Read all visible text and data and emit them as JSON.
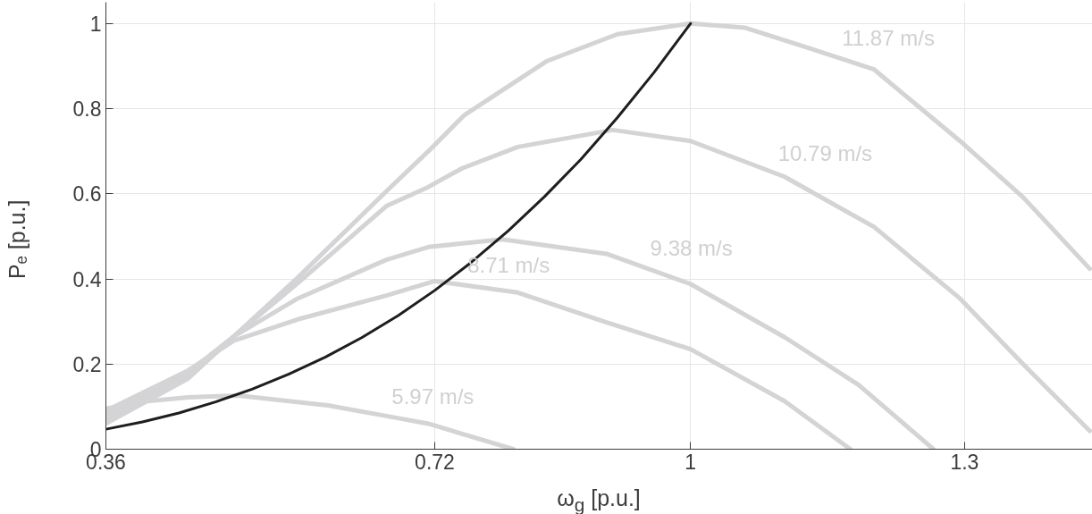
{
  "chart_data": {
    "type": "line",
    "xlabel": "ω$_{g}$ [p.u.]",
    "ylabel": "Pₑ [p.u.]",
    "xlim": [
      0.36,
      1.44
    ],
    "ylim": [
      0,
      1.05
    ],
    "xticks": [
      0.36,
      0.72,
      1,
      1.3
    ],
    "yticks": [
      0,
      0.2,
      0.4,
      0.6,
      0.8,
      1
    ],
    "grid": true,
    "series": [
      {
        "color": "#d4d4d6",
        "x": [
          0.36,
          0.45,
          0.5,
          0.57,
          0.667,
          0.713,
          0.752,
          0.843,
          0.92,
          1.0,
          1.06,
          1.123,
          1.201,
          1.295,
          1.364,
          1.437
        ],
        "values": [
          0.06,
          0.166,
          0.265,
          0.403,
          0.606,
          0.7,
          0.784,
          0.912,
          0.975,
          1.0,
          0.99,
          0.947,
          0.892,
          0.724,
          0.592,
          0.424
        ]
      },
      {
        "color": "#d4d4d6",
        "x": [
          0.36,
          0.45,
          0.5,
          0.57,
          0.667,
          0.713,
          0.75,
          0.811,
          0.915,
          1.0,
          1.103,
          1.201,
          1.295,
          1.364,
          1.437
        ],
        "values": [
          0.07,
          0.17,
          0.265,
          0.39,
          0.571,
          0.616,
          0.66,
          0.71,
          0.75,
          0.724,
          0.64,
          0.522,
          0.354,
          0.2,
          0.043
        ]
      },
      {
        "color": "#d4d4d6",
        "x": [
          0.36,
          0.45,
          0.5,
          0.57,
          0.667,
          0.713,
          0.794,
          0.908,
          1.0,
          1.103,
          1.184,
          1.266
        ],
        "values": [
          0.08,
          0.18,
          0.265,
          0.354,
          0.445,
          0.475,
          0.493,
          0.459,
          0.388,
          0.263,
          0.151,
          0.0
        ]
      },
      {
        "color": "#d4d4d6",
        "x": [
          0.36,
          0.45,
          0.5,
          0.57,
          0.667,
          0.72,
          0.811,
          0.908,
          1.0,
          1.103,
          1.175
        ],
        "values": [
          0.09,
          0.185,
          0.255,
          0.305,
          0.361,
          0.395,
          0.368,
          0.298,
          0.235,
          0.113,
          0.0
        ]
      },
      {
        "color": "#d4d4d6",
        "x": [
          0.36,
          0.4,
          0.45,
          0.505,
          0.603,
          0.667,
          0.713,
          0.806
        ],
        "values": [
          0.095,
          0.112,
          0.122,
          0.126,
          0.103,
          0.078,
          0.06,
          0.0
        ]
      },
      {
        "color": "#1e1e1e",
        "x": [
          0.36,
          0.4,
          0.44,
          0.48,
          0.52,
          0.56,
          0.6,
          0.64,
          0.68,
          0.72,
          0.76,
          0.8,
          0.84,
          0.88,
          0.92,
          0.96,
          1.0
        ],
        "values": [
          0.047,
          0.064,
          0.085,
          0.111,
          0.141,
          0.176,
          0.216,
          0.262,
          0.314,
          0.373,
          0.439,
          0.512,
          0.593,
          0.681,
          0.779,
          0.885,
          1.0
        ]
      }
    ],
    "annotations": [
      {
        "text": "11.87 m/s",
        "x": 1.16,
        "y": 0.921
      },
      {
        "text": "10.79 m/s",
        "x": 1.09,
        "y": 0.651
      },
      {
        "text": "9.38 m/s",
        "x": 0.95,
        "y": 0.427
      },
      {
        "text": "8.71 m/s",
        "x": 0.75,
        "y": 0.388
      },
      {
        "text": "5.97 m/s",
        "x": 0.667,
        "y": 0.078
      }
    ]
  }
}
